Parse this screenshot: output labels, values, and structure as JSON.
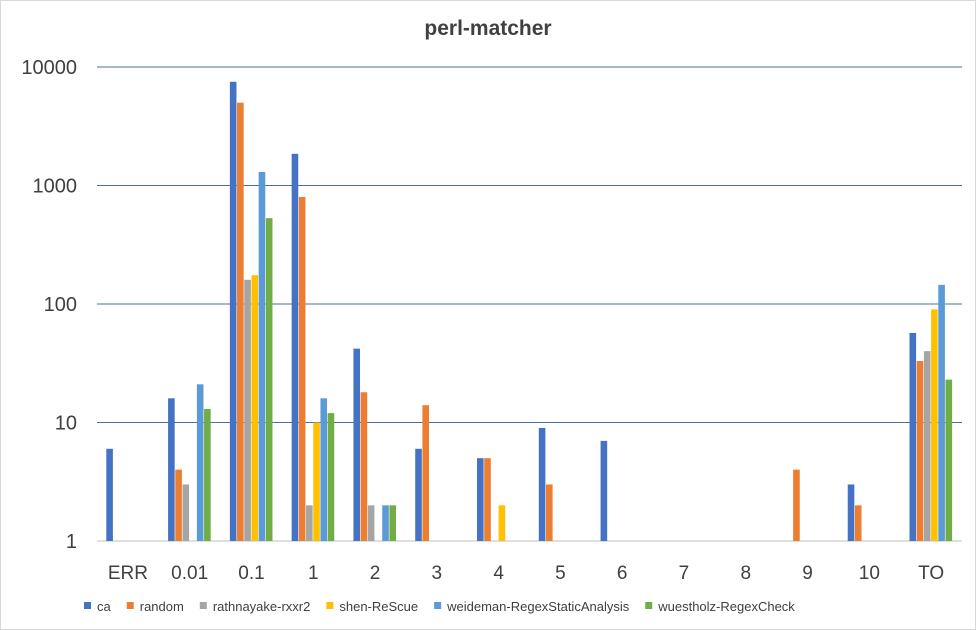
{
  "chart_data": {
    "type": "bar",
    "title": "perl-matcher",
    "xlabel": "",
    "ylabel": "",
    "yscale": "log",
    "ylim": [
      1,
      10000
    ],
    "yticks": [
      "1",
      "10",
      "100",
      "1000",
      "10000"
    ],
    "grid": true,
    "legend": "bottom",
    "categories": [
      "ERR",
      "0.01",
      "0.1",
      "1",
      "2",
      "3",
      "4",
      "5",
      "6",
      "7",
      "8",
      "9",
      "10",
      "TO"
    ],
    "series": [
      {
        "name": "ca",
        "color": "#4472c4",
        "values": [
          6,
          16,
          7500,
          1850,
          42,
          6,
          5,
          9,
          7,
          null,
          null,
          null,
          3,
          57
        ]
      },
      {
        "name": "random",
        "color": "#ed7d31",
        "values": [
          null,
          4,
          5000,
          800,
          18,
          14,
          5,
          3,
          null,
          null,
          null,
          4,
          2,
          33
        ]
      },
      {
        "name": "rathnayake-rxxr2",
        "color": "#a5a5a5",
        "values": [
          null,
          3,
          160,
          2,
          2,
          null,
          null,
          null,
          null,
          null,
          null,
          null,
          null,
          40
        ]
      },
      {
        "name": "shen-ReScue",
        "color": "#ffc000",
        "values": [
          null,
          null,
          175,
          10,
          null,
          null,
          2,
          null,
          null,
          null,
          null,
          null,
          null,
          90
        ]
      },
      {
        "name": "weideman-RegexStaticAnalysis",
        "color": "#5b9bd5",
        "values": [
          null,
          21,
          1300,
          16,
          2,
          null,
          null,
          null,
          null,
          null,
          null,
          null,
          null,
          145
        ]
      },
      {
        "name": "wuestholz-RegexCheck",
        "color": "#70ad47",
        "values": [
          null,
          13,
          530,
          12,
          2,
          null,
          null,
          null,
          null,
          null,
          null,
          null,
          null,
          23
        ]
      }
    ]
  }
}
